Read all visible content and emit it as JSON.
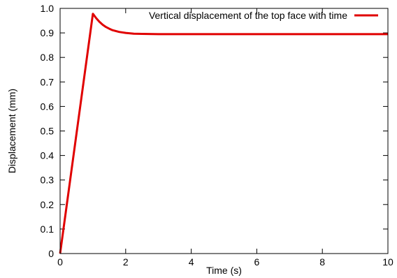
{
  "chart_data": {
    "type": "line",
    "xlabel": "Time (s)",
    "ylabel": "Displacement (mm)",
    "xlim": [
      0,
      10
    ],
    "ylim": [
      0,
      1.0
    ],
    "x_ticks": [
      0,
      2,
      4,
      6,
      8,
      10
    ],
    "x_tick_labels": [
      "0",
      "2",
      "4",
      "6",
      "8",
      "10"
    ],
    "y_ticks": [
      0,
      0.1,
      0.2,
      0.3,
      0.4,
      0.5,
      0.6,
      0.7,
      0.8,
      0.9,
      1.0
    ],
    "y_tick_labels": [
      "0",
      "0.1",
      "0.2",
      "0.3",
      "0.4",
      "0.5",
      "0.6",
      "0.7",
      "0.8",
      "0.9",
      "1.0"
    ],
    "grid": false,
    "legend_position": "top-right",
    "series": [
      {
        "name": "Vertical displacement of the top face with time",
        "color": "#e00000",
        "x": [
          0,
          1.0,
          1.1,
          1.2,
          1.3,
          1.4,
          1.5,
          1.6,
          1.8,
          2.0,
          2.25,
          2.5,
          3.0,
          3.5,
          4.0,
          5.0,
          6.0,
          7.0,
          8.0,
          9.0,
          10.0
        ],
        "y": [
          0,
          0.978,
          0.96,
          0.945,
          0.933,
          0.924,
          0.917,
          0.911,
          0.904,
          0.9,
          0.897,
          0.896,
          0.895,
          0.895,
          0.895,
          0.895,
          0.895,
          0.895,
          0.895,
          0.895,
          0.895
        ]
      }
    ]
  }
}
